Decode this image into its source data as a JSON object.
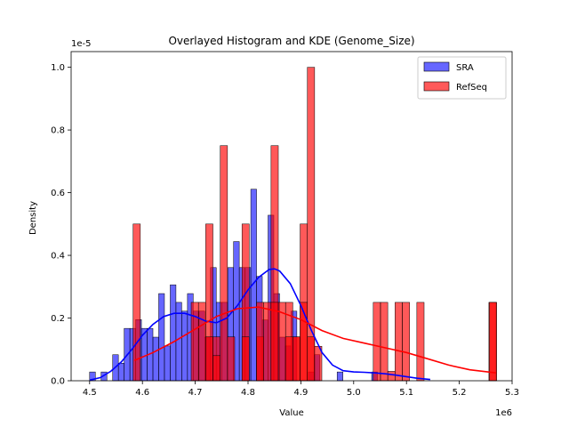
{
  "chart_data": {
    "type": "bar",
    "title": "Overlayed Histogram and KDE (Genome_Size)",
    "xlabel": "Value",
    "ylabel": "Density",
    "x_scale_label": "1e6",
    "y_scale_label": "1e-5",
    "x_scale": 1000000,
    "y_scale": 1e-05,
    "xlim": [
      4.465,
      5.3
    ],
    "ylim": [
      0,
      1.05
    ],
    "xticks": [
      4.5,
      4.6,
      4.7,
      4.8,
      4.9,
      5.0,
      5.1,
      5.2,
      5.3
    ],
    "xtick_labels": [
      "4.5",
      "4.6",
      "4.7",
      "4.8",
      "4.9",
      "5.0",
      "5.1",
      "5.2",
      "5.3"
    ],
    "yticks": [
      0.0,
      0.2,
      0.4,
      0.6,
      0.8,
      1.0
    ],
    "ytick_labels": [
      "0.0",
      "0.2",
      "0.4",
      "0.6",
      "0.8",
      "1.0"
    ],
    "grid": false,
    "legend_position": "top-right",
    "series": [
      {
        "name": "SRA",
        "kind": "histogram",
        "color": "#0000ff",
        "bin_start": 4.5,
        "bin_width": 0.0109,
        "values": [
          0.028,
          0,
          0.028,
          0,
          0.083,
          0.056,
          0.167,
          0.167,
          0.195,
          0.167,
          0.167,
          0.139,
          0.278,
          0.111,
          0.306,
          0.25,
          0.222,
          0.278,
          0.222,
          0.222,
          0.139,
          0.361,
          0.25,
          0.25,
          0.361,
          0.444,
          0.361,
          0.361,
          0.611,
          0.333,
          0.194,
          0.528,
          0.278,
          0.139,
          0.111,
          0.222,
          0,
          0,
          0.028,
          0.083,
          0,
          0,
          0,
          0.028,
          0,
          0,
          0,
          0,
          0,
          0.028
        ],
        "kde_x": [
          4.5,
          4.52,
          4.54,
          4.56,
          4.58,
          4.6,
          4.62,
          4.64,
          4.66,
          4.68,
          4.7,
          4.72,
          4.74,
          4.76,
          4.78,
          4.8,
          4.82,
          4.84,
          4.85,
          4.86,
          4.88,
          4.9,
          4.92,
          4.94,
          4.96,
          4.98,
          5.0,
          5.02,
          5.04,
          5.06,
          5.08,
          5.1,
          5.12,
          5.145
        ],
        "kde_y": [
          0.002,
          0.01,
          0.03,
          0.06,
          0.1,
          0.145,
          0.18,
          0.205,
          0.215,
          0.215,
          0.205,
          0.19,
          0.185,
          0.2,
          0.24,
          0.29,
          0.33,
          0.355,
          0.357,
          0.35,
          0.31,
          0.24,
          0.16,
          0.09,
          0.05,
          0.032,
          0.028,
          0.027,
          0.025,
          0.022,
          0.018,
          0.013,
          0.008,
          0.004
        ]
      },
      {
        "name": "RefSeq",
        "kind": "histogram",
        "color": "#ff0000",
        "bin_start": 4.5823,
        "bin_width": 0.01375,
        "values": [
          0.5,
          0,
          0,
          0,
          0,
          0,
          0,
          0,
          0,
          0.25,
          0.5,
          0.14,
          0.75,
          0,
          0,
          0.5,
          0,
          0.14,
          0.25,
          0.75,
          0.25,
          0.25,
          0.14,
          0.5,
          1.0,
          0,
          0,
          0,
          0,
          0,
          0,
          0,
          0,
          0,
          0,
          0,
          0,
          0,
          0,
          0,
          0,
          0,
          0,
          0,
          0,
          0,
          0,
          0,
          0,
          0.25
        ],
        "extra_bins": [
          {
            "x": 5.0371,
            "value": 0.25
          },
          {
            "x": 5.0508,
            "value": 0.25
          },
          {
            "x": 5.0783,
            "value": 0.25
          },
          {
            "x": 5.0921,
            "value": 0.25
          },
          {
            "x": 5.1196,
            "value": 0.25
          },
          {
            "x": 5.2571,
            "value": 0.25
          },
          {
            "x": 4.6923,
            "value": 0.25
          },
          {
            "x": 4.7198,
            "value": 0.14
          },
          {
            "x": 4.7335,
            "value": 0.08
          },
          {
            "x": 4.761,
            "value": 0.14
          },
          {
            "x": 4.7885,
            "value": 0.14
          },
          {
            "x": 4.816,
            "value": 0.25
          },
          {
            "x": 4.8435,
            "value": 0.25
          },
          {
            "x": 4.871,
            "value": 0.14
          },
          {
            "x": 4.8848,
            "value": 0.14
          },
          {
            "x": 4.8985,
            "value": 0.25
          },
          {
            "x": 4.9123,
            "value": 0.14
          },
          {
            "x": 4.926,
            "value": 0.11
          },
          {
            "x": 5.0646,
            "value": 0.03
          }
        ],
        "kde_x": [
          4.585,
          4.62,
          4.66,
          4.7,
          4.74,
          4.78,
          4.82,
          4.86,
          4.9,
          4.94,
          4.98,
          5.02,
          5.06,
          5.1,
          5.14,
          5.18,
          5.22,
          5.27
        ],
        "kde_y": [
          0.065,
          0.09,
          0.125,
          0.165,
          0.205,
          0.23,
          0.235,
          0.22,
          0.195,
          0.16,
          0.135,
          0.12,
          0.105,
          0.09,
          0.07,
          0.05,
          0.035,
          0.025
        ]
      }
    ]
  }
}
